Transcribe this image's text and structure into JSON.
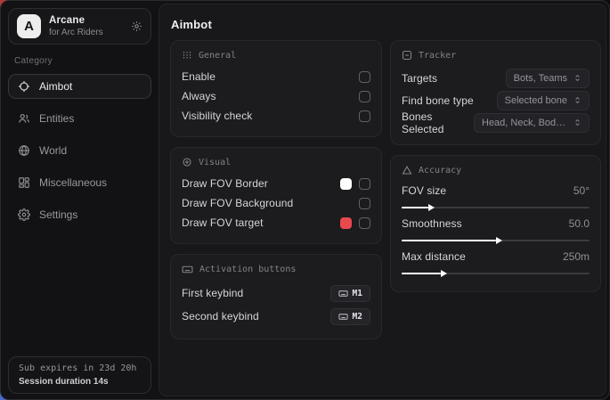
{
  "brand": {
    "logo_letter": "A",
    "name": "Arcane",
    "subtitle": "for Arc Riders"
  },
  "sidebar": {
    "category_label": "Category",
    "items": [
      {
        "label": "Aimbot",
        "selected": true
      },
      {
        "label": "Entities",
        "selected": false
      },
      {
        "label": "World",
        "selected": false
      },
      {
        "label": "Miscellaneous",
        "selected": false
      },
      {
        "label": "Settings",
        "selected": false
      }
    ],
    "footer": {
      "sub_expires": "Sub expires in 23d 20h",
      "session_duration": "Session duration 14s"
    }
  },
  "main": {
    "title": "Aimbot",
    "general": {
      "title": "General",
      "rows": [
        {
          "label": "Enable",
          "checked": false
        },
        {
          "label": "Always",
          "checked": false
        },
        {
          "label": "Visibility check",
          "checked": false
        }
      ]
    },
    "visual": {
      "title": "Visual",
      "rows": [
        {
          "label": "Draw FOV Border",
          "color": "#ffffff",
          "checked": false
        },
        {
          "label": "Draw FOV Background",
          "checked": false
        },
        {
          "label": "Draw FOV target",
          "color": "#e8494e",
          "checked": false
        }
      ]
    },
    "activation": {
      "title": "Activation buttons",
      "rows": [
        {
          "label": "First keybind",
          "key": "M1"
        },
        {
          "label": "Second keybind",
          "key": "M2"
        }
      ]
    },
    "tracker": {
      "title": "Tracker",
      "rows": [
        {
          "label": "Targets",
          "value": "Bots, Teams"
        },
        {
          "label": "Find bone type",
          "value": "Selected bone"
        },
        {
          "label": "Bones Selected",
          "value": "Head, Neck, Body, Pe..."
        }
      ]
    },
    "accuracy": {
      "title": "Accuracy",
      "sliders": [
        {
          "label": "FOV size",
          "value": "50°",
          "percent": 14
        },
        {
          "label": "Smoothness",
          "value": "50.0",
          "percent": 50
        },
        {
          "label": "Max distance",
          "value": "250m",
          "percent": 21
        }
      ]
    }
  },
  "colors": {
    "accent_red": "#e8494e",
    "swatch_white": "#ffffff"
  }
}
